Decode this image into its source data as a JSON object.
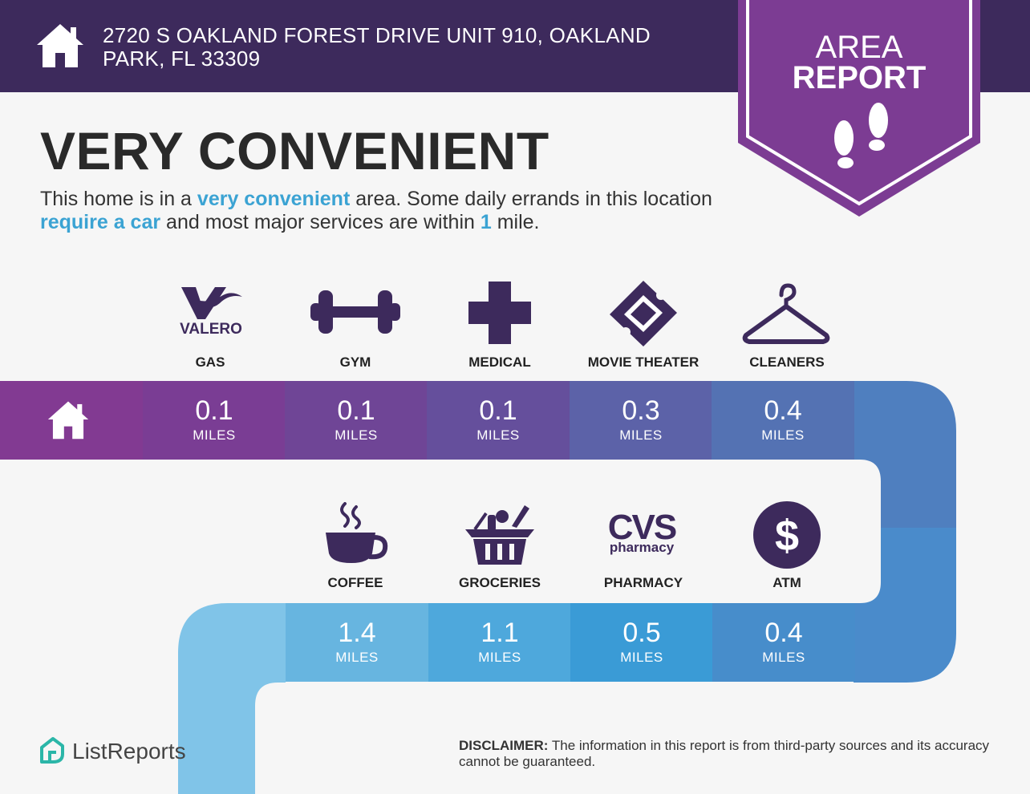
{
  "header": {
    "address_line1": "2720 S OAKLAND FOREST DRIVE UNIT 910, OAKLAND",
    "address_line2": "PARK, FL 33309",
    "home_icon": "house-icon"
  },
  "badge": {
    "line1": "AREA",
    "line2": "REPORT",
    "icon": "footprints-icon"
  },
  "headline": "VERY CONVENIENT",
  "description": {
    "part1": "This home is in a ",
    "hl1": "very convenient",
    "part2": " area. Some daily errands in this location ",
    "hl2": "require a car",
    "part3": " and most major services are within ",
    "hl3": "1",
    "part4": " mile."
  },
  "services_top": [
    {
      "label": "GAS",
      "icon": "valero-logo",
      "logo_text": "VALERO",
      "distance": "0.1",
      "unit": "MILES",
      "color": "#7a3d94"
    },
    {
      "label": "GYM",
      "icon": "dumbbell-icon",
      "distance": "0.1",
      "unit": "MILES",
      "color": "#6f4596"
    },
    {
      "label": "MEDICAL",
      "icon": "medical-cross-icon",
      "distance": "0.1",
      "unit": "MILES",
      "color": "#654f9c"
    },
    {
      "label": "MOVIE THEATER",
      "icon": "ticket-icon",
      "distance": "0.3",
      "unit": "MILES",
      "color": "#5c62a8"
    },
    {
      "label": "CLEANERS",
      "icon": "hanger-icon",
      "distance": "0.4",
      "unit": "MILES",
      "color": "#5472b3"
    }
  ],
  "services_bottom": [
    {
      "label": "COFFEE",
      "icon": "coffee-cup-icon",
      "distance": "1.4",
      "unit": "MILES",
      "color": "#67b5e0"
    },
    {
      "label": "GROCERIES",
      "icon": "grocery-basket-icon",
      "distance": "1.1",
      "unit": "MILES",
      "color": "#4ea8dc"
    },
    {
      "label": "PHARMACY",
      "icon": "cvs-pharmacy-logo",
      "logo_text": "CVS",
      "logo_sub": "pharmacy",
      "distance": "0.5",
      "unit": "MILES",
      "color": "#3a9bd6"
    },
    {
      "label": "ATM",
      "icon": "dollar-icon",
      "logo_text": "$",
      "distance": "0.4",
      "unit": "MILES",
      "color": "#478dcb"
    }
  ],
  "colors": {
    "header_bg": "#3d2a5c",
    "badge": "#7c3c93",
    "accent_blue": "#3ba3d3",
    "icon_purple": "#3d2a5c"
  },
  "footer": {
    "logo_text": "ListReports",
    "disclaimer_label": "DISCLAIMER:",
    "disclaimer_text": " The information in this report is from third-party sources and its accuracy cannot be guaranteed."
  }
}
